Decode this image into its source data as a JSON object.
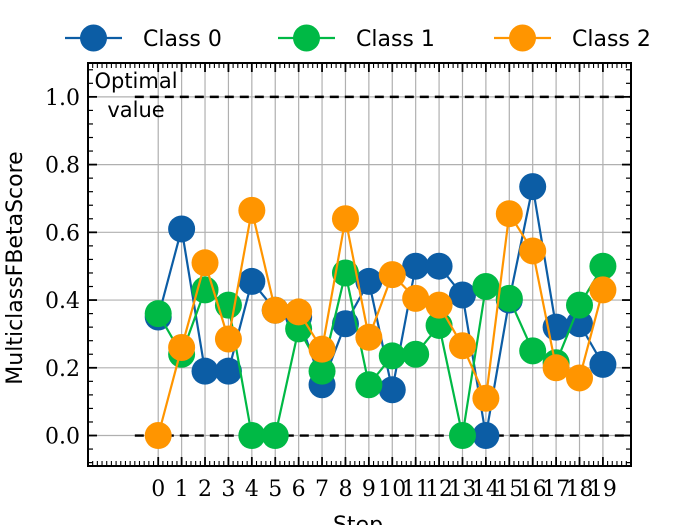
{
  "chart_data": {
    "type": "line",
    "title": "",
    "xlabel": "Step",
    "ylabel": "MulticlassFBetaScore",
    "x": [
      0,
      1,
      2,
      3,
      4,
      5,
      6,
      7,
      8,
      9,
      10,
      11,
      12,
      13,
      14,
      15,
      16,
      17,
      18,
      19
    ],
    "xticks": [
      "0",
      "1",
      "2",
      "3",
      "4",
      "5",
      "6",
      "7",
      "8",
      "9",
      "10",
      "11",
      "12",
      "13",
      "14",
      "15",
      "16",
      "17",
      "18",
      "19"
    ],
    "xlim": [
      -3,
      20.2
    ],
    "ylim": [
      -0.09,
      1.1
    ],
    "yticks": [
      0.0,
      0.2,
      0.4,
      0.6,
      0.8,
      1.0
    ],
    "ytick_labels": [
      "0.0",
      "0.2",
      "0.4",
      "0.6",
      "0.8",
      "1.0"
    ],
    "grid": true,
    "legend_position": "top",
    "series": [
      {
        "name": "Class 0",
        "color": "#0C5DA5",
        "values": [
          0.35,
          0.61,
          0.19,
          0.19,
          0.455,
          0.37,
          0.35,
          0.15,
          0.33,
          0.455,
          0.135,
          0.5,
          0.5,
          0.415,
          0.0,
          0.4,
          0.735,
          0.32,
          0.33,
          0.21
        ]
      },
      {
        "name": "Class 1",
        "color": "#00B945",
        "values": [
          0.36,
          0.24,
          0.43,
          0.385,
          0.0,
          0.0,
          0.315,
          0.19,
          0.48,
          0.15,
          0.235,
          0.24,
          0.325,
          0.0,
          0.44,
          0.405,
          0.25,
          0.215,
          0.385,
          0.5
        ]
      },
      {
        "name": "Class 2",
        "color": "#FF9500",
        "values": [
          0.0,
          0.26,
          0.51,
          0.285,
          0.665,
          0.37,
          0.365,
          0.255,
          0.64,
          0.29,
          0.475,
          0.405,
          0.385,
          0.265,
          0.11,
          0.655,
          0.545,
          0.2,
          0.17,
          0.43
        ]
      }
    ],
    "reference_lines": [
      {
        "y": 1.0,
        "style": "dashed",
        "color": "#000000",
        "x_start": -1,
        "x_end": 20.2
      },
      {
        "y": 0.0,
        "style": "dashed",
        "color": "#000000",
        "x_start": -1,
        "x_end": 20.2
      }
    ],
    "annotations": [
      {
        "text": "Optimal"
      },
      {
        "text": "value"
      }
    ]
  }
}
